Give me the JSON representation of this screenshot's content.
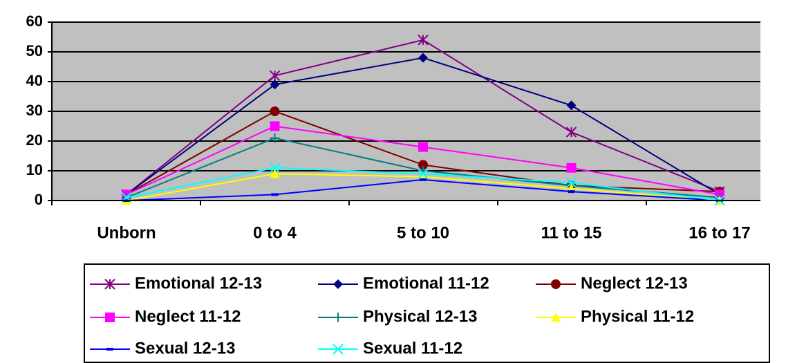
{
  "chart_data": {
    "type": "line",
    "categories": [
      "Unborn",
      "0 to 4",
      "5 to 10",
      "11 to 15",
      "16 to 17"
    ],
    "ylim": [
      0,
      60
    ],
    "yticks": [
      0,
      10,
      20,
      30,
      40,
      50,
      60
    ],
    "grid": true,
    "series": [
      {
        "name": "Emotional 12-13",
        "color": "#800080",
        "marker": "star",
        "values": [
          2,
          42,
          54,
          23,
          3
        ]
      },
      {
        "name": "Emotional 11-12",
        "color": "#000080",
        "marker": "diamond",
        "values": [
          2,
          39,
          48,
          32,
          2
        ]
      },
      {
        "name": "Neglect 12-13",
        "color": "#800000",
        "marker": "circle",
        "values": [
          2,
          30,
          12,
          5,
          3
        ]
      },
      {
        "name": "Neglect 11-12",
        "color": "#FF00FF",
        "marker": "square",
        "values": [
          2,
          25,
          18,
          11,
          2
        ]
      },
      {
        "name": "Physical 12-13",
        "color": "#008080",
        "marker": "plus",
        "values": [
          1,
          21,
          10,
          5,
          1
        ]
      },
      {
        "name": "Physical 11-12",
        "color": "#FFFF00",
        "marker": "triangle",
        "values": [
          0,
          9,
          8,
          4,
          0
        ]
      },
      {
        "name": "Sexual 12-13",
        "color": "#0000FF",
        "marker": "dash",
        "values": [
          0,
          2,
          7,
          3,
          0
        ]
      },
      {
        "name": "Sexual 11-12",
        "color": "#00FFFF",
        "marker": "x",
        "values": [
          1,
          11,
          9,
          6,
          0
        ]
      }
    ]
  }
}
